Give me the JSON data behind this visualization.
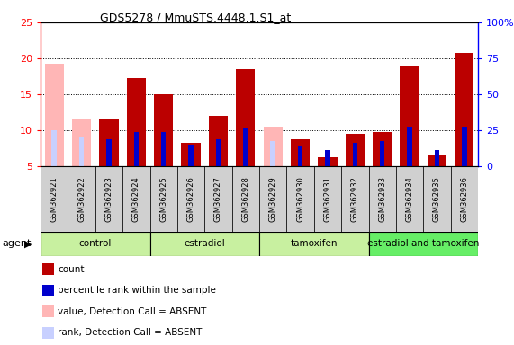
{
  "title": "GDS5278 / MmuSTS.4448.1.S1_at",
  "samples": [
    "GSM362921",
    "GSM362922",
    "GSM362923",
    "GSM362924",
    "GSM362925",
    "GSM362926",
    "GSM362927",
    "GSM362928",
    "GSM362929",
    "GSM362930",
    "GSM362931",
    "GSM362932",
    "GSM362933",
    "GSM362934",
    "GSM362935",
    "GSM362936"
  ],
  "count_values": [
    19.3,
    11.5,
    11.5,
    17.2,
    15.0,
    8.2,
    12.0,
    18.5,
    10.5,
    8.8,
    6.3,
    9.5,
    9.7,
    19.0,
    6.5,
    20.8
  ],
  "rank_values": [
    10.0,
    9.0,
    8.8,
    9.7,
    9.7,
    8.0,
    8.8,
    10.3,
    8.5,
    7.9,
    7.3,
    8.3,
    8.5,
    10.5,
    7.3,
    10.5
  ],
  "absent": [
    true,
    true,
    false,
    false,
    false,
    false,
    false,
    false,
    true,
    false,
    false,
    false,
    false,
    false,
    false,
    false
  ],
  "ymin": 5,
  "ymax": 25,
  "yticks": [
    5,
    10,
    15,
    20,
    25
  ],
  "y_right_ticks": [
    0,
    25,
    50,
    75,
    100
  ],
  "y_right_tick_labels": [
    "0",
    "25",
    "50",
    "75",
    "100%"
  ],
  "bar_width": 0.7,
  "rank_bar_width": 0.18,
  "count_color_present": "#bb0000",
  "count_color_absent": "#ffb6b6",
  "rank_color_present": "#0000cc",
  "rank_color_absent": "#c8d0ff",
  "groups": [
    {
      "name": "control",
      "start": 0,
      "end": 3,
      "color": "#c8f0a0"
    },
    {
      "name": "estradiol",
      "start": 4,
      "end": 7,
      "color": "#c8f0a0"
    },
    {
      "name": "tamoxifen",
      "start": 8,
      "end": 11,
      "color": "#c8f0a0"
    },
    {
      "name": "estradiol and tamoxifen",
      "start": 12,
      "end": 15,
      "color": "#66ee66"
    }
  ],
  "legend_items": [
    {
      "label": "count",
      "color": "#bb0000"
    },
    {
      "label": "percentile rank within the sample",
      "color": "#0000cc"
    },
    {
      "label": "value, Detection Call = ABSENT",
      "color": "#ffb6b6"
    },
    {
      "label": "rank, Detection Call = ABSENT",
      "color": "#c8d0ff"
    }
  ],
  "xlabel_bg": "#d0d0d0",
  "agent_label": "agent"
}
